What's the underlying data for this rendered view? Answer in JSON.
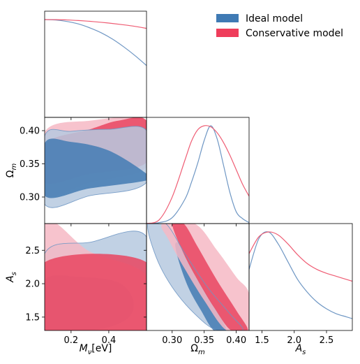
{
  "chart_data": {
    "type": "triangle",
    "colors": {
      "ideal_line": "#6f97c4",
      "ideal_fill_outer": "#b6c9df",
      "ideal_fill_inner": "#4a7fb5",
      "cons_line": "#ef5d74",
      "cons_fill_outer": "#f6b8c4",
      "cons_fill_inner": "#e94560",
      "legend_ideal": "#3f7ab4",
      "legend_cons": "#ef3d5b"
    },
    "legend": {
      "position": "top-right",
      "entries": [
        {
          "name": "Ideal model"
        },
        {
          "name": "Conservative model"
        }
      ]
    },
    "axes": {
      "mnu": {
        "label": "M_ν[eV]",
        "range": [
          0.06,
          0.6
        ],
        "ticks": [
          0.2,
          0.4
        ],
        "tick_labels": [
          "0.2",
          "0.4"
        ]
      },
      "om": {
        "label": "Ω_m",
        "range": [
          0.26,
          0.42
        ],
        "ticks": [
          0.3,
          0.35,
          0.4
        ],
        "tick_labels": [
          "0.30",
          "0.35",
          "0.40"
        ]
      },
      "as": {
        "label": "A_s",
        "range": [
          1.3,
          2.9
        ],
        "ticks": [
          1.5,
          2.0,
          2.5
        ],
        "tick_labels": [
          "1.5",
          "2.0",
          "2.5"
        ]
      }
    },
    "marginals": {
      "mnu": {
        "x": [
          0.06,
          0.12,
          0.18,
          0.24,
          0.3,
          0.36,
          0.42,
          0.48,
          0.54,
          0.6
        ],
        "ideal": [
          1.0,
          0.995,
          0.98,
          0.955,
          0.915,
          0.865,
          0.8,
          0.72,
          0.63,
          0.53
        ],
        "conservative": [
          1.0,
          0.999,
          0.996,
          0.99,
          0.982,
          0.972,
          0.96,
          0.946,
          0.93,
          0.91
        ]
      },
      "om": {
        "x": [
          0.26,
          0.28,
          0.3,
          0.32,
          0.33,
          0.34,
          0.35,
          0.36,
          0.37,
          0.38,
          0.39,
          0.4,
          0.41,
          0.42
        ],
        "ideal": [
          0.0,
          0.01,
          0.06,
          0.25,
          0.42,
          0.62,
          0.85,
          1.0,
          0.87,
          0.6,
          0.32,
          0.12,
          0.05,
          0.01
        ],
        "conservative": [
          0.0,
          0.04,
          0.27,
          0.65,
          0.84,
          0.96,
          1.0,
          0.99,
          0.93,
          0.83,
          0.7,
          0.55,
          0.4,
          0.28
        ]
      },
      "as": {
        "x": [
          1.3,
          1.45,
          1.6,
          1.75,
          1.9,
          2.05,
          2.2,
          2.35,
          2.5,
          2.65,
          2.8,
          2.9
        ],
        "ideal": [
          0.62,
          0.93,
          1.0,
          0.88,
          0.7,
          0.52,
          0.39,
          0.29,
          0.22,
          0.17,
          0.14,
          0.12
        ],
        "conservative": [
          0.78,
          0.95,
          1.0,
          0.97,
          0.88,
          0.77,
          0.68,
          0.62,
          0.58,
          0.55,
          0.52,
          0.5
        ]
      }
    },
    "contours": {
      "om_vs_mnu": {
        "cons_outer": [
          [
            0.06,
            0.305
          ],
          [
            0.3,
            0.322
          ],
          [
            0.6,
            0.345
          ],
          [
            0.6,
            0.415
          ],
          [
            0.3,
            0.415
          ],
          [
            0.06,
            0.398
          ]
        ],
        "cons_inner": [
          [
            0.06,
            0.322
          ],
          [
            0.3,
            0.335
          ],
          [
            0.6,
            0.352
          ],
          [
            0.6,
            0.415
          ],
          [
            0.45,
            0.415
          ],
          [
            0.3,
            0.402
          ],
          [
            0.06,
            0.38
          ]
        ],
        "ideal_outer": [
          [
            0.06,
            0.289
          ],
          [
            0.3,
            0.302
          ],
          [
            0.6,
            0.322
          ],
          [
            0.6,
            0.4
          ],
          [
            0.4,
            0.402
          ],
          [
            0.2,
            0.399
          ],
          [
            0.06,
            0.392
          ]
        ],
        "ideal_inner": [
          [
            0.06,
            0.302
          ],
          [
            0.3,
            0.313
          ],
          [
            0.6,
            0.325
          ],
          [
            0.6,
            0.335
          ],
          [
            0.4,
            0.37
          ],
          [
            0.2,
            0.383
          ],
          [
            0.06,
            0.381
          ]
        ]
      },
      "as_vs_mnu": {
        "cons_outer": [
          [
            0.06,
            1.3
          ],
          [
            0.6,
            1.3
          ],
          [
            0.6,
            2.12
          ],
          [
            0.3,
            2.48
          ],
          [
            0.06,
            2.9
          ]
        ],
        "cons_inner": [
          [
            0.06,
            1.3
          ],
          [
            0.6,
            1.3
          ],
          [
            0.6,
            2.32
          ],
          [
            0.06,
            2.32
          ]
        ],
        "ideal_outer": [
          [
            0.06,
            1.3
          ],
          [
            0.6,
            1.3
          ],
          [
            0.6,
            2.7
          ],
          [
            0.3,
            2.62
          ],
          [
            0.06,
            2.45
          ]
        ],
        "ideal_inner": [
          [
            0.06,
            1.3
          ],
          [
            0.1,
            1.3
          ],
          [
            0.35,
            1.32
          ],
          [
            0.5,
            1.48
          ],
          [
            0.53,
            1.75
          ],
          [
            0.45,
            2.02
          ],
          [
            0.25,
            2.1
          ],
          [
            0.06,
            2.05
          ]
        ]
      },
      "as_vs_om": {
        "ideal_outer": [
          [
            0.262,
            2.9
          ],
          [
            0.29,
            2.9
          ],
          [
            0.32,
            2.45
          ],
          [
            0.355,
            1.95
          ],
          [
            0.39,
            1.55
          ],
          [
            0.41,
            1.3
          ],
          [
            0.37,
            1.3
          ],
          [
            0.335,
            1.55
          ],
          [
            0.3,
            1.95
          ],
          [
            0.275,
            2.4
          ]
        ],
        "ideal_inner": [
          [
            0.305,
            2.6
          ],
          [
            0.315,
            2.55
          ],
          [
            0.335,
            2.15
          ],
          [
            0.36,
            1.75
          ],
          [
            0.385,
            1.3
          ],
          [
            0.365,
            1.3
          ],
          [
            0.345,
            1.6
          ],
          [
            0.325,
            1.95
          ],
          [
            0.31,
            2.35
          ]
        ],
        "cons_outer": [
          [
            0.285,
            2.9
          ],
          [
            0.335,
            2.9
          ],
          [
            0.37,
            2.5
          ],
          [
            0.4,
            2.1
          ],
          [
            0.42,
            1.85
          ],
          [
            0.42,
            1.3
          ],
          [
            0.385,
            1.3
          ],
          [
            0.35,
            1.75
          ],
          [
            0.318,
            2.25
          ],
          [
            0.295,
            2.65
          ]
        ],
        "cons_inner": [
          [
            0.3,
            2.9
          ],
          [
            0.318,
            2.9
          ],
          [
            0.34,
            2.55
          ],
          [
            0.37,
            2.05
          ],
          [
            0.4,
            1.6
          ],
          [
            0.418,
            1.3
          ],
          [
            0.392,
            1.3
          ],
          [
            0.365,
            1.65
          ],
          [
            0.34,
            2.05
          ],
          [
            0.318,
            2.45
          ]
        ]
      }
    }
  }
}
